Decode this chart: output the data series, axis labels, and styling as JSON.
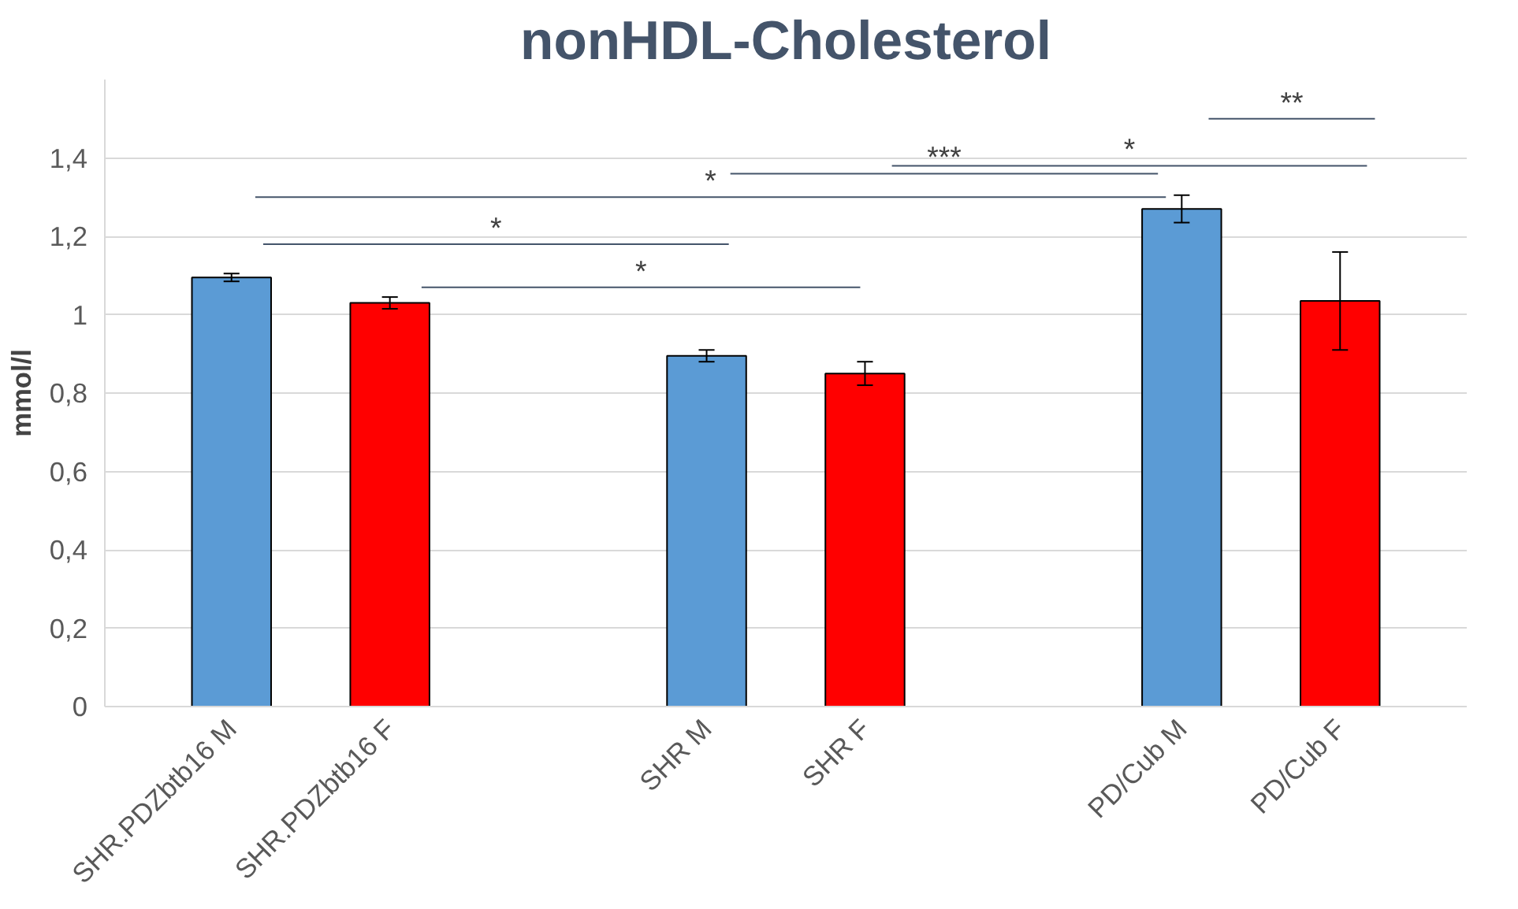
{
  "chart_data": {
    "type": "bar",
    "title": "nonHDL-Cholesterol",
    "ylabel": "mmol/l",
    "categories": [
      "SHR.PDZbtb16 M",
      "SHR.PDZbtb16 F",
      null,
      "SHR M",
      "SHR F",
      null,
      "PD/Cub M",
      "PD/Cub F"
    ],
    "values": [
      1.095,
      1.03,
      null,
      0.895,
      0.85,
      null,
      1.27,
      1.035
    ],
    "errors": [
      0.01,
      0.015,
      null,
      0.015,
      0.03,
      null,
      0.035,
      0.125
    ],
    "colors": [
      "#5b9bd5",
      "#ff0000",
      "#5b9bd5",
      "#5b9bd5",
      "#ff0000",
      "#5b9bd5",
      "#5b9bd5",
      "#ff0000"
    ],
    "ylim": [
      0,
      1.6
    ],
    "yticks": [
      0,
      {
        "value": 0.2,
        "label": "0,2"
      },
      {
        "value": 0.4,
        "label": "0,4"
      },
      {
        "value": 0.6,
        "label": "0,6"
      },
      {
        "value": 0.8,
        "label": "0,8"
      },
      1,
      {
        "value": 1.2,
        "label": "1,2"
      },
      {
        "value": 1.4,
        "label": "1,4"
      }
    ],
    "grid": "y",
    "annotations": [
      "*",
      "*",
      "*",
      "***",
      "*",
      "**"
    ]
  }
}
